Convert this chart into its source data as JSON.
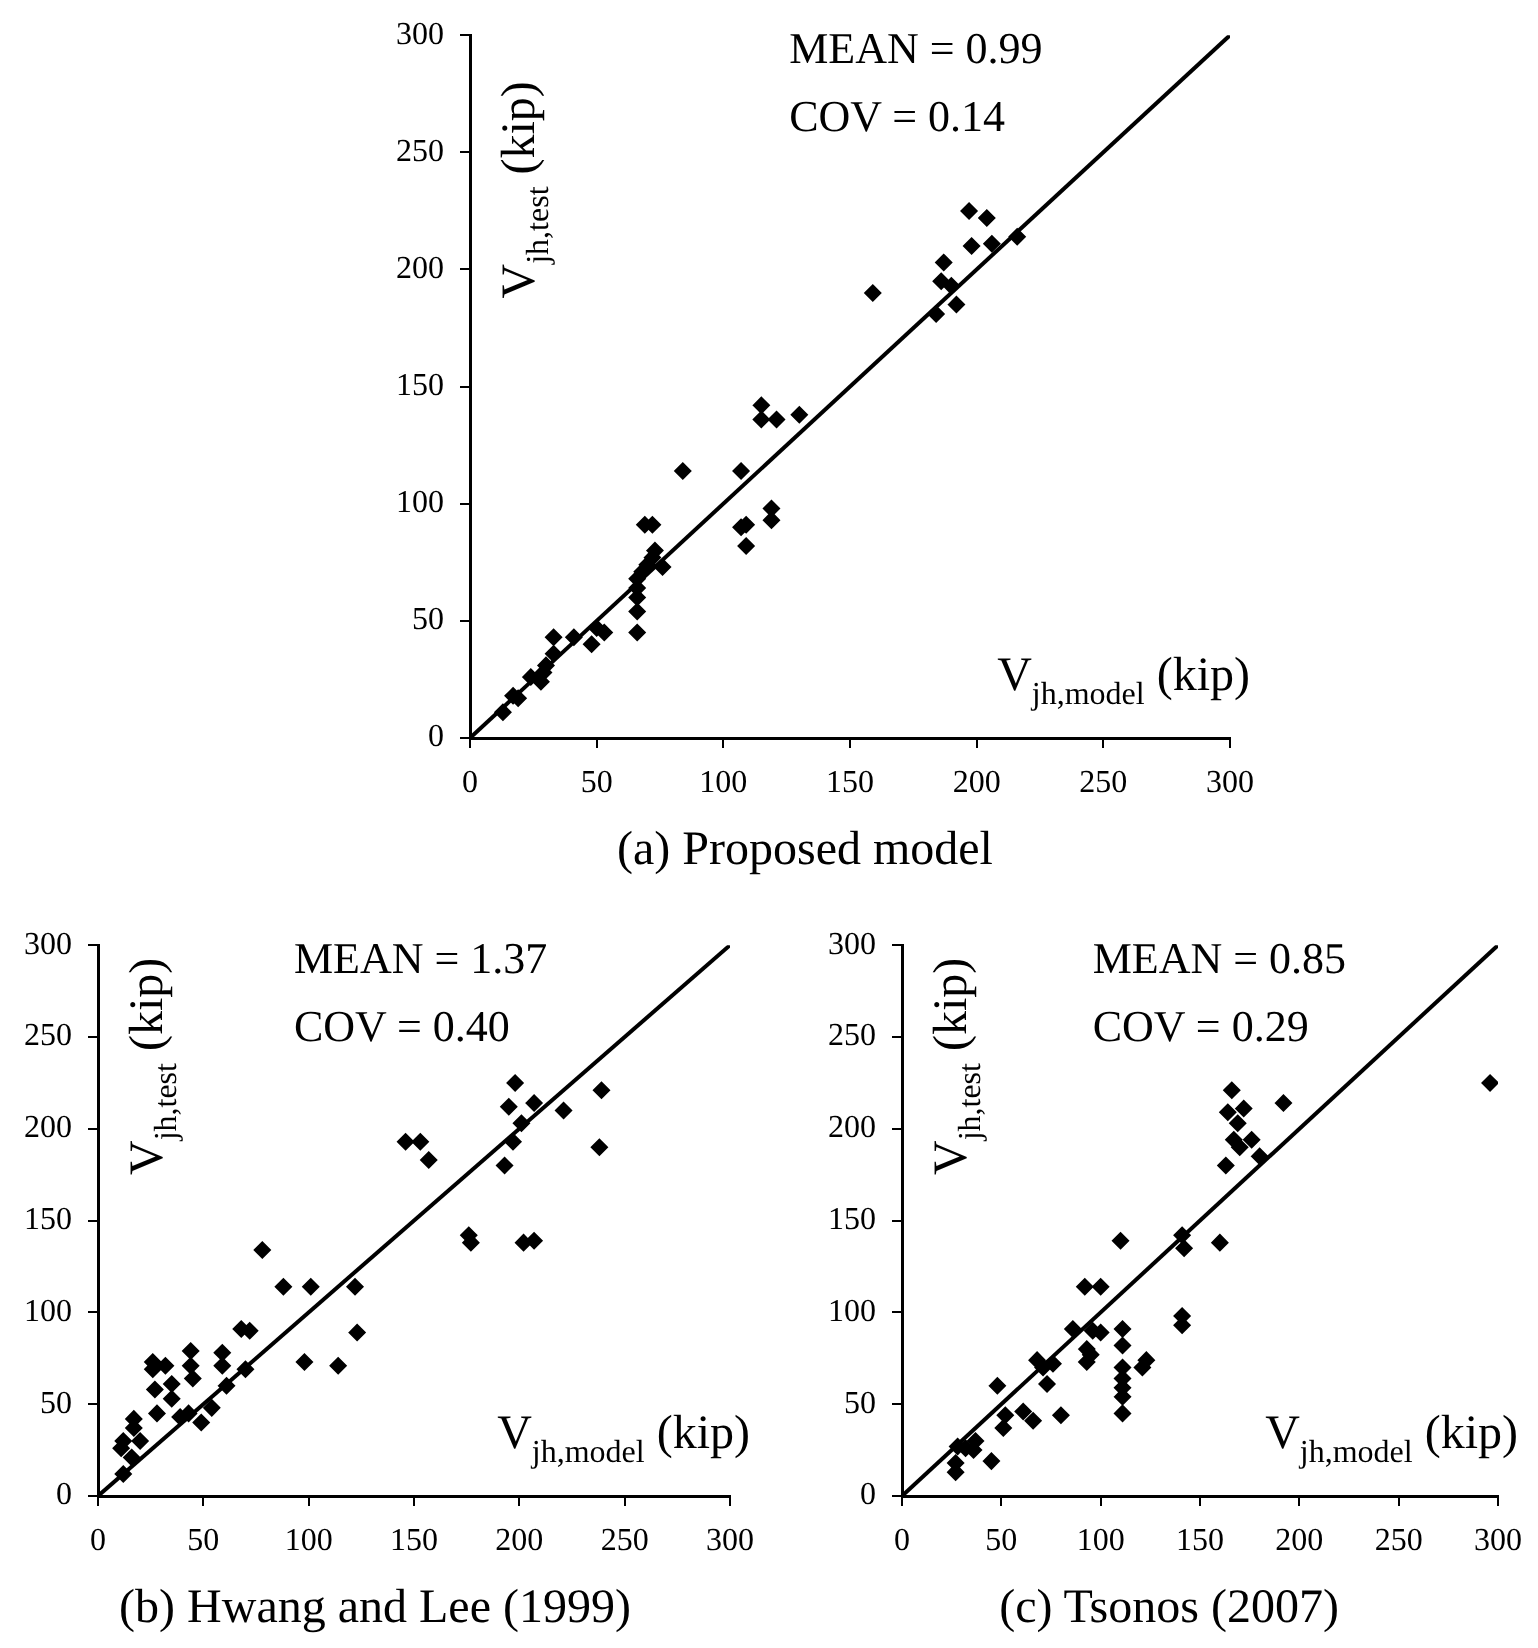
{
  "chart_data": [
    {
      "type": "scatter",
      "title": "(a) Proposed model",
      "xlabel": "V$_{jh,model}$ (kip)",
      "ylabel": "V$_{jh,test}$ (kip)",
      "annotations": [
        "MEAN = 0.99",
        "COV = 0.14"
      ],
      "xlim": [
        0,
        300
      ],
      "ylim": [
        0,
        300
      ],
      "xticks": [
        0,
        50,
        100,
        150,
        200,
        250,
        300
      ],
      "yticks": [
        0,
        50,
        100,
        150,
        200,
        250,
        300
      ],
      "grid": false,
      "legend": false,
      "marker": "diamond",
      "series": [
        {
          "type": "scatter",
          "color": "#000000",
          "x": [
            13,
            17,
            19,
            24,
            28,
            29,
            30,
            33,
            33,
            41,
            48,
            50,
            53,
            66,
            66,
            66,
            66,
            66,
            68,
            69,
            72,
            70,
            72,
            73,
            76,
            84,
            107,
            107,
            109,
            109,
            115,
            115,
            121,
            119,
            119,
            130,
            159,
            184,
            186,
            187,
            190,
            192,
            197,
            204,
            198,
            206,
            216
          ],
          "values": [
            11,
            18,
            17,
            26,
            24,
            28,
            31,
            36,
            43,
            43,
            40,
            47,
            45,
            45,
            54,
            60,
            64,
            68,
            71,
            91,
            91,
            74,
            77,
            80,
            73,
            114,
            114,
            90,
            91,
            82,
            142,
            136,
            136,
            98,
            93,
            138,
            190,
            181,
            195,
            203,
            193,
            185,
            225,
            222,
            210,
            211,
            214
          ]
        },
        {
          "type": "line",
          "color": "#000000",
          "marker": "none",
          "x": [
            0,
            300
          ],
          "values": [
            0,
            300
          ]
        }
      ]
    },
    {
      "type": "scatter",
      "title": "(b) Hwang and Lee (1999)",
      "xlabel": "V$_{jh,model}$ (kip)",
      "ylabel": "V$_{jh,test}$ (kip)",
      "annotations": [
        "MEAN = 1.37",
        "COV = 0.40"
      ],
      "xlim": [
        0,
        300
      ],
      "ylim": [
        0,
        300
      ],
      "xticks": [
        0,
        50,
        100,
        150,
        200,
        250,
        300
      ],
      "yticks": [
        0,
        50,
        100,
        150,
        200,
        250,
        300
      ],
      "grid": false,
      "legend": false,
      "marker": "diamond",
      "series": [
        {
          "type": "scatter",
          "color": "#000000",
          "x": [
            12,
            11,
            12,
            16,
            17,
            17,
            20,
            26,
            26,
            27,
            28,
            32,
            35,
            35,
            39,
            43,
            44,
            44,
            45,
            49,
            54,
            59,
            59,
            61,
            70,
            68,
            72,
            78,
            88,
            98,
            101,
            114,
            122,
            123,
            146,
            153,
            157,
            176,
            177,
            193,
            195,
            198,
            197,
            201,
            202,
            207,
            207,
            221,
            238,
            239
          ],
          "values": [
            12,
            26,
            30,
            21,
            42,
            37,
            30,
            73,
            69,
            58,
            45,
            71,
            61,
            53,
            43,
            45,
            71,
            79,
            64,
            40,
            48,
            78,
            71,
            60,
            69,
            91,
            90,
            134,
            114,
            73,
            114,
            71,
            114,
            89,
            193,
            193,
            183,
            142,
            138,
            180,
            212,
            225,
            193,
            203,
            138,
            214,
            139,
            210,
            190,
            221
          ]
        },
        {
          "type": "line",
          "color": "#000000",
          "marker": "none",
          "x": [
            0,
            300
          ],
          "values": [
            0,
            300
          ]
        }
      ]
    },
    {
      "type": "scatter",
      "title": "(c) Tsonos (2007)",
      "xlabel": "V$_{jh,model}$ (kip)",
      "ylabel": "V$_{jh,test}$ (kip)",
      "annotations": [
        "MEAN = 0.85",
        "COV = 0.29"
      ],
      "xlim": [
        0,
        300
      ],
      "ylim": [
        0,
        300
      ],
      "xticks": [
        0,
        50,
        100,
        150,
        200,
        250,
        300
      ],
      "yticks": [
        0,
        50,
        100,
        150,
        200,
        250,
        300
      ],
      "grid": false,
      "legend": false,
      "marker": "diamond",
      "series": [
        {
          "type": "scatter",
          "color": "#000000",
          "x": [
            27,
            27,
            28,
            32,
            36,
            37,
            45,
            48,
            51,
            52,
            61,
            66,
            68,
            71,
            73,
            76,
            80,
            86,
            92,
            93,
            93,
            95,
            96,
            100,
            100,
            110,
            111,
            111,
            111,
            111,
            111,
            111,
            111,
            121,
            123,
            141,
            141,
            141,
            142,
            160,
            163,
            164,
            166,
            167,
            169,
            170,
            172,
            176,
            180,
            192,
            296
          ],
          "values": [
            13,
            18,
            27,
            26,
            25,
            30,
            19,
            60,
            37,
            44,
            46,
            41,
            74,
            70,
            61,
            72,
            44,
            91,
            114,
            80,
            73,
            77,
            90,
            114,
            89,
            139,
            91,
            82,
            70,
            64,
            59,
            54,
            45,
            70,
            74,
            142,
            98,
            93,
            135,
            138,
            180,
            209,
            221,
            194,
            203,
            190,
            211,
            194,
            185,
            214,
            225
          ]
        },
        {
          "type": "line",
          "color": "#000000",
          "marker": "none",
          "x": [
            0,
            300
          ],
          "values": [
            0,
            300
          ]
        }
      ]
    }
  ]
}
